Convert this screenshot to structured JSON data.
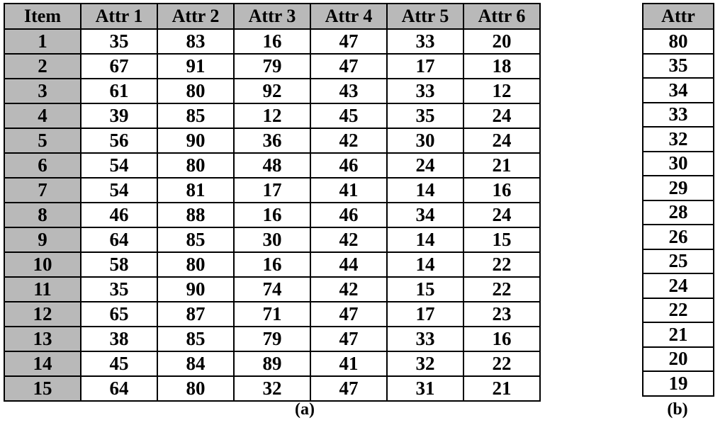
{
  "chart_data": [
    {
      "type": "table",
      "caption": "(a)",
      "columns": [
        "Item",
        "Attr 1",
        "Attr 2",
        "Attr 3",
        "Attr 4",
        "Attr 5",
        "Attr 6"
      ],
      "rows": [
        [
          "1",
          "35",
          "83",
          "16",
          "47",
          "33",
          "20"
        ],
        [
          "2",
          "67",
          "91",
          "79",
          "47",
          "17",
          "18"
        ],
        [
          "3",
          "61",
          "80",
          "92",
          "43",
          "33",
          "12"
        ],
        [
          "4",
          "39",
          "85",
          "12",
          "45",
          "35",
          "24"
        ],
        [
          "5",
          "56",
          "90",
          "36",
          "42",
          "30",
          "24"
        ],
        [
          "6",
          "54",
          "80",
          "48",
          "46",
          "24",
          "21"
        ],
        [
          "7",
          "54",
          "81",
          "17",
          "41",
          "14",
          "16"
        ],
        [
          "8",
          "46",
          "88",
          "16",
          "46",
          "34",
          "24"
        ],
        [
          "9",
          "64",
          "85",
          "30",
          "42",
          "14",
          "15"
        ],
        [
          "10",
          "58",
          "80",
          "16",
          "44",
          "14",
          "22"
        ],
        [
          "11",
          "35",
          "90",
          "74",
          "42",
          "15",
          "22"
        ],
        [
          "12",
          "65",
          "87",
          "71",
          "47",
          "17",
          "23"
        ],
        [
          "13",
          "38",
          "85",
          "79",
          "47",
          "33",
          "16"
        ],
        [
          "14",
          "45",
          "84",
          "89",
          "41",
          "32",
          "22"
        ],
        [
          "15",
          "64",
          "80",
          "32",
          "47",
          "31",
          "21"
        ]
      ],
      "header_color": "#b9b9b9"
    },
    {
      "type": "table",
      "caption": "(b)",
      "columns": [
        "Attr"
      ],
      "rows": [
        [
          "80"
        ],
        [
          "35"
        ],
        [
          "34"
        ],
        [
          "33"
        ],
        [
          "32"
        ],
        [
          "30"
        ],
        [
          "29"
        ],
        [
          "28"
        ],
        [
          "26"
        ],
        [
          "25"
        ],
        [
          "24"
        ],
        [
          "22"
        ],
        [
          "21"
        ],
        [
          "20"
        ],
        [
          "19"
        ]
      ],
      "header_color": "#b9b9b9"
    }
  ]
}
